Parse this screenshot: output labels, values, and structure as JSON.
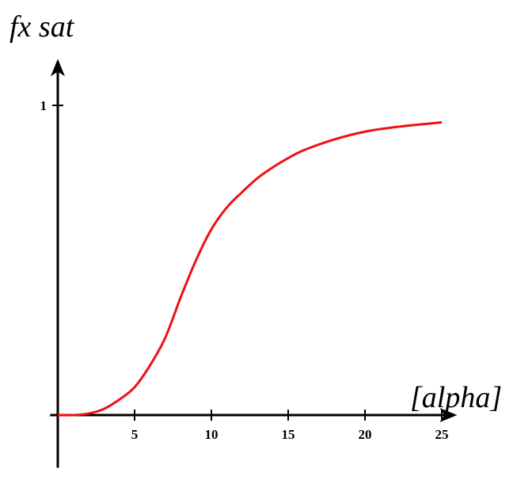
{
  "chart_data": {
    "type": "line",
    "title": "fx sat",
    "x_label": "[alpha]",
    "x": [
      0,
      1,
      2,
      3,
      4,
      5,
      6,
      7,
      8,
      9,
      10,
      11,
      12,
      13,
      14,
      15,
      16,
      18,
      20,
      22,
      25
    ],
    "values": [
      0,
      0,
      0.005,
      0.02,
      0.05,
      0.09,
      0.16,
      0.25,
      0.38,
      0.5,
      0.6,
      0.67,
      0.72,
      0.765,
      0.8,
      0.83,
      0.855,
      0.89,
      0.915,
      0.93,
      0.945
    ],
    "color": "#ee1111",
    "xlim": [
      -0.5,
      26
    ],
    "ylim": [
      -0.17,
      1.15
    ],
    "xticks": [
      5,
      10,
      15,
      20,
      25
    ],
    "yticks": [
      1
    ]
  }
}
